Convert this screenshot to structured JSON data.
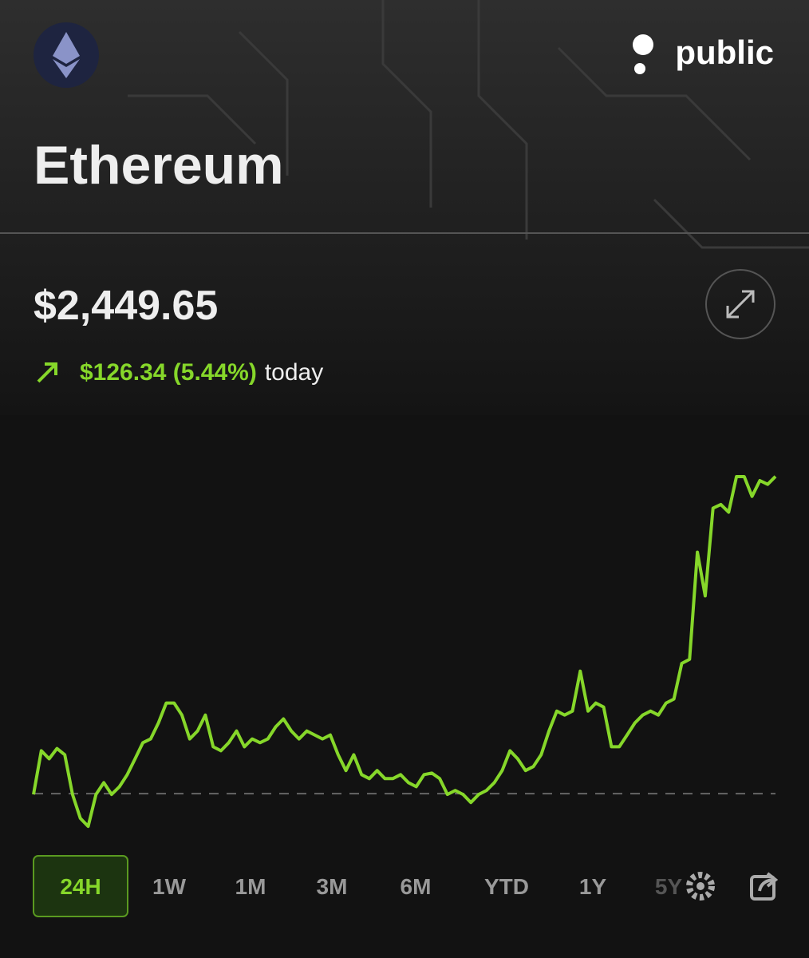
{
  "header": {
    "brand": "public",
    "title": "Ethereum"
  },
  "quote": {
    "price": "$2,449.65",
    "change": "$126.34 (5.44%)",
    "period": "today"
  },
  "chart_data": {
    "type": "line",
    "color": "#86d72a",
    "ylim": [
      2310,
      2455
    ],
    "baseline": 2323.3,
    "values": [
      2323.0,
      2340.4,
      2337.2,
      2341.3,
      2338.8,
      2323.0,
      2313.5,
      2310.3,
      2323.0,
      2327.7,
      2323.0,
      2326.1,
      2330.9,
      2337.2,
      2343.6,
      2345.1,
      2351.5,
      2359.4,
      2359.4,
      2354.6,
      2345.1,
      2348.3,
      2354.6,
      2342.0,
      2340.4,
      2343.6,
      2348.3,
      2342.0,
      2345.1,
      2343.6,
      2345.1,
      2349.9,
      2353.1,
      2348.3,
      2345.1,
      2348.3,
      2346.7,
      2345.1,
      2346.7,
      2338.8,
      2332.5,
      2338.8,
      2330.9,
      2329.3,
      2332.5,
      2329.3,
      2329.3,
      2330.9,
      2327.7,
      2326.1,
      2330.9,
      2331.5,
      2329.3,
      2323.0,
      2324.6,
      2323.0,
      2319.8,
      2323.0,
      2324.6,
      2327.7,
      2332.5,
      2340.4,
      2337.2,
      2332.5,
      2334.1,
      2338.8,
      2348.3,
      2356.2,
      2354.6,
      2356.2,
      2372.1,
      2356.2,
      2359.4,
      2357.8,
      2342.0,
      2342.0,
      2346.7,
      2351.5,
      2354.6,
      2356.2,
      2354.6,
      2359.4,
      2361.0,
      2375.2,
      2376.8,
      2419.5,
      2402.1,
      2437.0,
      2438.5,
      2435.4,
      2449.6,
      2449.6,
      2441.7,
      2448.0,
      2446.5,
      2449.65
    ]
  },
  "ranges": {
    "items": [
      "24H",
      "1W",
      "1M",
      "3M",
      "6M",
      "YTD",
      "1Y",
      "5Y"
    ],
    "selected": 0
  }
}
